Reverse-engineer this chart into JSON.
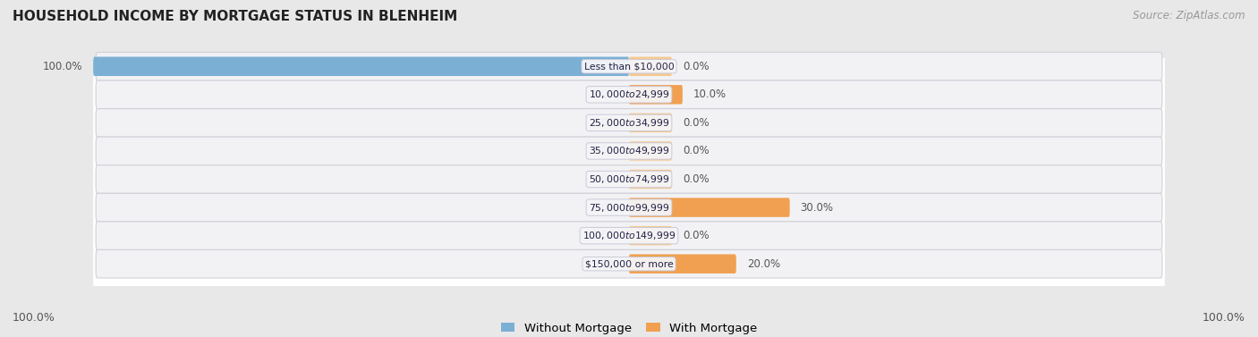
{
  "title": "HOUSEHOLD INCOME BY MORTGAGE STATUS IN BLENHEIM",
  "source": "Source: ZipAtlas.com",
  "categories": [
    "Less than $10,000",
    "$10,000 to $24,999",
    "$25,000 to $34,999",
    "$35,000 to $49,999",
    "$50,000 to $74,999",
    "$75,000 to $99,999",
    "$100,000 to $149,999",
    "$150,000 or more"
  ],
  "without_mortgage": [
    100.0,
    0.0,
    0.0,
    0.0,
    0.0,
    0.0,
    0.0,
    0.0
  ],
  "with_mortgage": [
    0.0,
    10.0,
    0.0,
    0.0,
    0.0,
    30.0,
    0.0,
    20.0
  ],
  "color_without": "#7bafd4",
  "color_with_active": "#f0a050",
  "color_with_inactive": "#f5c990",
  "bg_color": "#e8e8e8",
  "row_bg_color": "#f2f2f5",
  "row_outline_color": "#d0d0d8",
  "white_area_color": "#ffffff",
  "axis_max": 100,
  "left_label": "100.0%",
  "right_label": "100.0%",
  "label_color": "#555555",
  "title_color": "#222222",
  "source_color": "#999999",
  "cat_label_bg": "#f8f8f8",
  "cat_label_border": "#ccccdd"
}
